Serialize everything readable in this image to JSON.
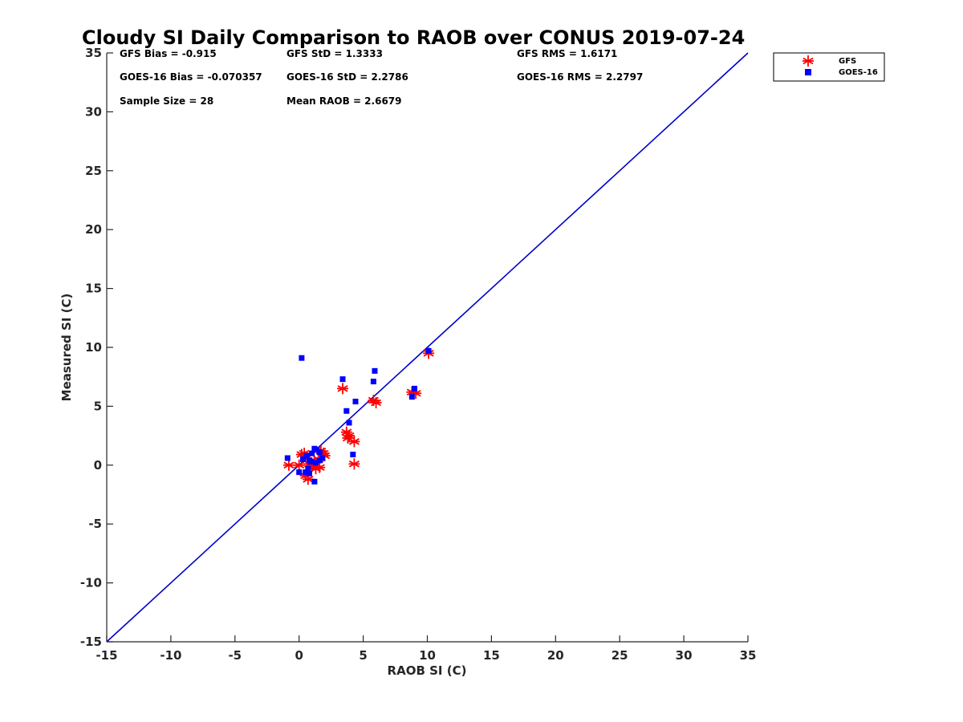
{
  "chart_data": {
    "type": "scatter",
    "title": "Cloudy SI Daily Comparison to RAOB over CONUS 2019-07-24",
    "xlabel": "RAOB SI (C)",
    "ylabel": "Measured SI (C)",
    "xlim": [
      -15,
      35
    ],
    "ylim": [
      -15,
      35
    ],
    "xticks": [
      -15,
      -10,
      -5,
      0,
      5,
      10,
      15,
      20,
      25,
      30,
      35
    ],
    "yticks": [
      -15,
      -10,
      -5,
      0,
      5,
      10,
      15,
      20,
      25,
      30,
      35
    ],
    "grid": false,
    "legend_position": "top-right outside",
    "reference_line": {
      "name": "1:1 line",
      "x": [
        -15,
        35
      ],
      "y": [
        -15,
        35
      ],
      "color": "#0000cc"
    },
    "stats": [
      [
        "GFS Bias = -0.915",
        "GFS StD = 1.3333",
        "GFS RMS = 1.6171"
      ],
      [
        "GOES-16 Bias = -0.070357",
        "GOES-16 StD = 2.2786",
        "GOES-16 RMS = 2.2797"
      ],
      [
        "Sample Size = 28",
        "Mean RAOB = 2.6679",
        ""
      ]
    ],
    "series": [
      {
        "name": "GFS",
        "marker": "asterisk",
        "color": "#ff0000",
        "points": [
          [
            10.1,
            9.5
          ],
          [
            8.8,
            6.2
          ],
          [
            9.1,
            6.1
          ],
          [
            3.4,
            6.5
          ],
          [
            5.8,
            5.5
          ],
          [
            6.0,
            5.3
          ],
          [
            3.7,
            2.8
          ],
          [
            3.9,
            2.5
          ],
          [
            3.8,
            2.3
          ],
          [
            4.3,
            2.0
          ],
          [
            4.3,
            0.1
          ],
          [
            -0.8,
            0.0
          ],
          [
            0.2,
            0.9
          ],
          [
            0.4,
            1.0
          ],
          [
            0.6,
            0.6
          ],
          [
            0.0,
            0.0
          ],
          [
            0.8,
            0.1
          ],
          [
            1.0,
            -0.1
          ],
          [
            1.2,
            0.3
          ],
          [
            1.5,
            0.5
          ],
          [
            1.7,
            1.2
          ],
          [
            1.9,
            1.0
          ],
          [
            2.0,
            0.8
          ],
          [
            1.3,
            -0.3
          ],
          [
            1.6,
            -0.2
          ],
          [
            0.7,
            -1.2
          ],
          [
            0.5,
            -0.9
          ],
          [
            1.1,
            0.0
          ]
        ]
      },
      {
        "name": "GOES-16",
        "marker": "square",
        "color": "#0000ff",
        "points": [
          [
            10.1,
            9.7
          ],
          [
            0.2,
            9.1
          ],
          [
            5.9,
            8.0
          ],
          [
            3.4,
            7.3
          ],
          [
            5.8,
            7.1
          ],
          [
            9.0,
            6.5
          ],
          [
            8.8,
            5.8
          ],
          [
            4.4,
            5.4
          ],
          [
            3.7,
            4.6
          ],
          [
            3.9,
            3.6
          ],
          [
            4.2,
            0.9
          ],
          [
            -0.9,
            0.6
          ],
          [
            0.0,
            -0.6
          ],
          [
            0.3,
            0.5
          ],
          [
            0.6,
            0.8
          ],
          [
            0.8,
            0.4
          ],
          [
            1.0,
            1.0
          ],
          [
            1.2,
            1.4
          ],
          [
            1.4,
            1.3
          ],
          [
            1.6,
            1.1
          ],
          [
            1.8,
            0.6
          ],
          [
            1.6,
            0.4
          ],
          [
            1.3,
            0.2
          ],
          [
            0.9,
            0.3
          ],
          [
            0.7,
            -0.3
          ],
          [
            0.5,
            -0.6
          ],
          [
            0.8,
            -0.7
          ],
          [
            1.2,
            -1.4
          ]
        ]
      }
    ]
  }
}
